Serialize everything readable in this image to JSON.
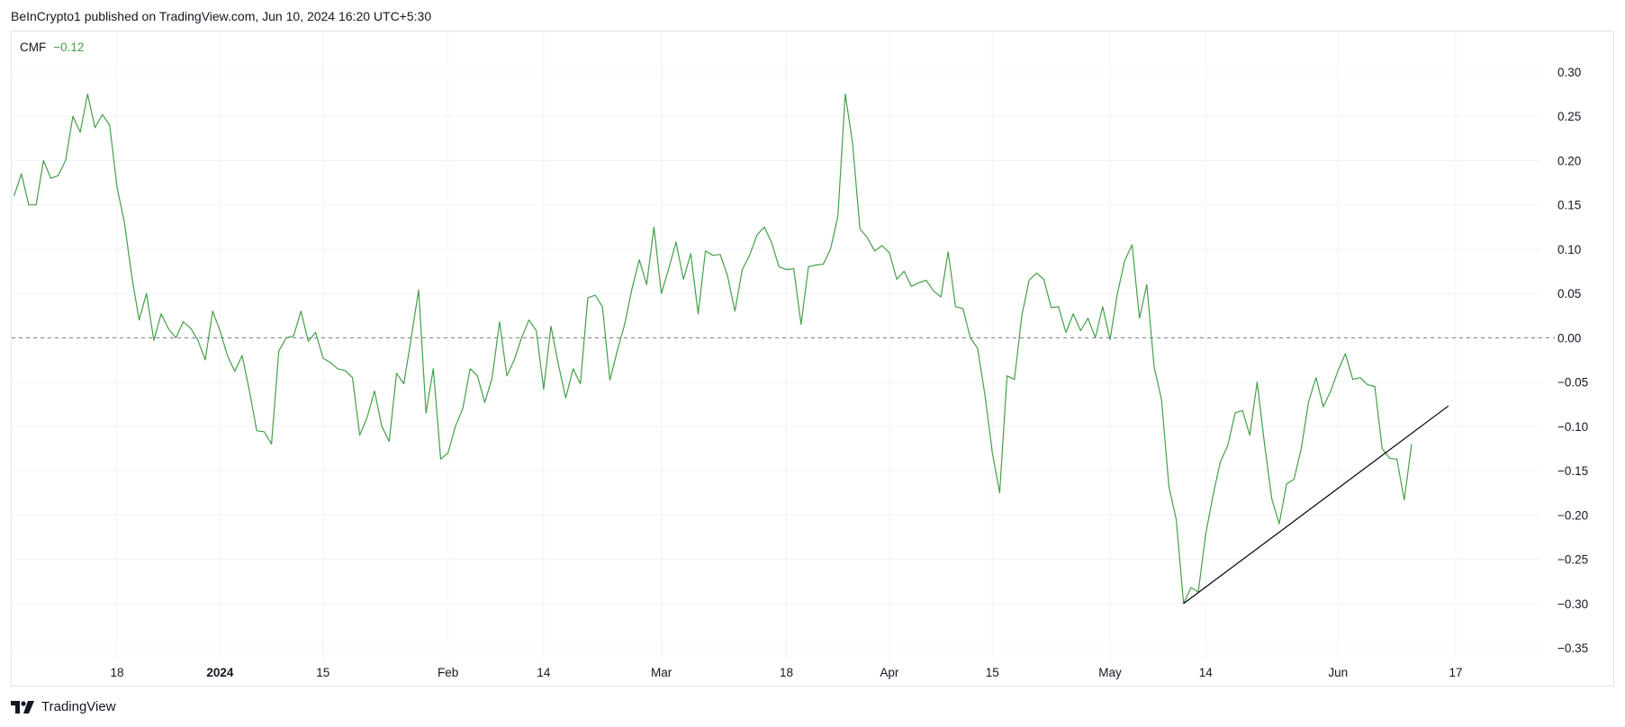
{
  "header": {
    "publisher_line": "BeInCrypto1 published on TradingView.com, Jun 10, 2024 16:20 UTC+5:30"
  },
  "legend": {
    "indicator": "CMF",
    "current_value": "−0.12"
  },
  "footer": {
    "brand": "TradingView",
    "logo_icon": "tradingview-logo-icon"
  },
  "colors": {
    "series": "#43a047",
    "trendline": "#000000",
    "zero_line": "#787b86",
    "grid": "#f0f3fa"
  },
  "chart_data": {
    "type": "line",
    "title": "",
    "xlabel": "",
    "ylabel": "",
    "ylim": [
      -0.35,
      0.3
    ],
    "y_ticks": [
      "0.30",
      "0.25",
      "0.20",
      "0.15",
      "0.10",
      "0.05",
      "0.00",
      "−0.05",
      "−0.10",
      "−0.15",
      "−0.20",
      "−0.25",
      "−0.30",
      "−0.35"
    ],
    "x_ticks": [
      {
        "label": "18",
        "date": "2023-12-18",
        "bold": false
      },
      {
        "label": "2024",
        "date": "2024-01-01",
        "bold": true
      },
      {
        "label": "15",
        "date": "2024-01-15",
        "bold": false
      },
      {
        "label": "Feb",
        "date": "2024-02-01",
        "bold": false
      },
      {
        "label": "14",
        "date": "2024-02-14",
        "bold": false
      },
      {
        "label": "Mar",
        "date": "2024-03-01",
        "bold": false
      },
      {
        "label": "18",
        "date": "2024-03-18",
        "bold": false
      },
      {
        "label": "Apr",
        "date": "2024-04-01",
        "bold": false
      },
      {
        "label": "15",
        "date": "2024-04-15",
        "bold": false
      },
      {
        "label": "May",
        "date": "2024-05-01",
        "bold": false
      },
      {
        "label": "14",
        "date": "2024-05-14",
        "bold": false
      },
      {
        "label": "Jun",
        "date": "2024-06-01",
        "bold": false
      },
      {
        "label": "17",
        "date": "2024-06-17",
        "bold": false
      }
    ],
    "xlim": [
      "2023-12-04",
      "2024-07-02"
    ],
    "zero_line": true,
    "grid": true,
    "series": [
      {
        "values": [
          [
            "2023-12-04",
            0.16
          ],
          [
            "2023-12-05",
            0.185
          ],
          [
            "2023-12-06",
            0.15
          ],
          [
            "2023-12-07",
            0.15
          ],
          [
            "2023-12-08",
            0.2
          ],
          [
            "2023-12-09",
            0.18
          ],
          [
            "2023-12-10",
            0.183
          ],
          [
            "2023-12-11",
            0.2
          ],
          [
            "2023-12-12",
            0.25
          ],
          [
            "2023-12-13",
            0.232
          ],
          [
            "2023-12-14",
            0.275
          ],
          [
            "2023-12-15",
            0.237
          ],
          [
            "2023-12-16",
            0.252
          ],
          [
            "2023-12-17",
            0.24
          ],
          [
            "2023-12-18",
            0.17
          ],
          [
            "2023-12-19",
            0.13
          ],
          [
            "2023-12-20",
            0.07
          ],
          [
            "2023-12-21",
            0.02
          ],
          [
            "2023-12-22",
            0.05
          ],
          [
            "2023-12-23",
            -0.003
          ],
          [
            "2023-12-24",
            0.027
          ],
          [
            "2023-12-25",
            0.01
          ],
          [
            "2023-12-26",
            0.0
          ],
          [
            "2023-12-27",
            0.018
          ],
          [
            "2023-12-28",
            0.011
          ],
          [
            "2023-12-29",
            -0.003
          ],
          [
            "2023-12-30",
            -0.025
          ],
          [
            "2023-12-31",
            0.03
          ],
          [
            "2024-01-01",
            0.008
          ],
          [
            "2024-01-02",
            -0.02
          ],
          [
            "2024-01-03",
            -0.038
          ],
          [
            "2024-01-04",
            -0.02
          ],
          [
            "2024-01-05",
            -0.06
          ],
          [
            "2024-01-06",
            -0.105
          ],
          [
            "2024-01-07",
            -0.106
          ],
          [
            "2024-01-08",
            -0.12
          ],
          [
            "2024-01-09",
            -0.015
          ],
          [
            "2024-01-10",
            0.0
          ],
          [
            "2024-01-11",
            0.002
          ],
          [
            "2024-01-12",
            0.03
          ],
          [
            "2024-01-13",
            -0.004
          ],
          [
            "2024-01-14",
            0.006
          ],
          [
            "2024-01-15",
            -0.023
          ],
          [
            "2024-01-16",
            -0.028
          ],
          [
            "2024-01-17",
            -0.035
          ],
          [
            "2024-01-18",
            -0.037
          ],
          [
            "2024-01-19",
            -0.045
          ],
          [
            "2024-01-20",
            -0.11
          ],
          [
            "2024-01-21",
            -0.09
          ],
          [
            "2024-01-22",
            -0.06
          ],
          [
            "2024-01-23",
            -0.1
          ],
          [
            "2024-01-24",
            -0.117
          ],
          [
            "2024-01-25",
            -0.04
          ],
          [
            "2024-01-26",
            -0.052
          ],
          [
            "2024-01-27",
            0.0
          ],
          [
            "2024-01-28",
            0.054
          ],
          [
            "2024-01-29",
            -0.085
          ],
          [
            "2024-01-30",
            -0.035
          ],
          [
            "2024-01-31",
            -0.137
          ],
          [
            "2024-02-01",
            -0.13
          ],
          [
            "2024-02-02",
            -0.1
          ],
          [
            "2024-02-03",
            -0.08
          ],
          [
            "2024-02-04",
            -0.035
          ],
          [
            "2024-02-05",
            -0.043
          ],
          [
            "2024-02-06",
            -0.073
          ],
          [
            "2024-02-07",
            -0.045
          ],
          [
            "2024-02-08",
            0.018
          ],
          [
            "2024-02-09",
            -0.043
          ],
          [
            "2024-02-10",
            -0.025
          ],
          [
            "2024-02-11",
            0.0
          ],
          [
            "2024-02-12",
            0.02
          ],
          [
            "2024-02-13",
            0.008
          ],
          [
            "2024-02-14",
            -0.058
          ],
          [
            "2024-02-15",
            0.013
          ],
          [
            "2024-02-16",
            -0.03
          ],
          [
            "2024-02-17",
            -0.068
          ],
          [
            "2024-02-18",
            -0.035
          ],
          [
            "2024-02-19",
            -0.052
          ],
          [
            "2024-02-20",
            0.045
          ],
          [
            "2024-02-21",
            0.048
          ],
          [
            "2024-02-22",
            0.035
          ],
          [
            "2024-02-23",
            -0.048
          ],
          [
            "2024-02-24",
            -0.015
          ],
          [
            "2024-02-25",
            0.015
          ],
          [
            "2024-02-26",
            0.055
          ],
          [
            "2024-02-27",
            0.088
          ],
          [
            "2024-02-28",
            0.06
          ],
          [
            "2024-02-29",
            0.125
          ],
          [
            "2024-03-01",
            0.05
          ],
          [
            "2024-03-02",
            0.078
          ],
          [
            "2024-03-03",
            0.108
          ],
          [
            "2024-03-04",
            0.066
          ],
          [
            "2024-03-05",
            0.095
          ],
          [
            "2024-03-06",
            0.027
          ],
          [
            "2024-03-07",
            0.098
          ],
          [
            "2024-03-08",
            0.093
          ],
          [
            "2024-03-09",
            0.094
          ],
          [
            "2024-03-10",
            0.07
          ],
          [
            "2024-03-11",
            0.03
          ],
          [
            "2024-03-12",
            0.077
          ],
          [
            "2024-03-13",
            0.093
          ],
          [
            "2024-03-14",
            0.116
          ],
          [
            "2024-03-15",
            0.125
          ],
          [
            "2024-03-16",
            0.107
          ],
          [
            "2024-03-17",
            0.08
          ],
          [
            "2024-03-18",
            0.077
          ],
          [
            "2024-03-19",
            0.078
          ],
          [
            "2024-03-20",
            0.015
          ],
          [
            "2024-03-21",
            0.08
          ],
          [
            "2024-03-22",
            0.082
          ],
          [
            "2024-03-23",
            0.083
          ],
          [
            "2024-03-24",
            0.1
          ],
          [
            "2024-03-25",
            0.137
          ],
          [
            "2024-03-26",
            0.275
          ],
          [
            "2024-03-27",
            0.22
          ],
          [
            "2024-03-28",
            0.123
          ],
          [
            "2024-03-29",
            0.113
          ],
          [
            "2024-03-30",
            0.098
          ],
          [
            "2024-03-31",
            0.104
          ],
          [
            "2024-04-01",
            0.096
          ],
          [
            "2024-04-02",
            0.066
          ],
          [
            "2024-04-03",
            0.075
          ],
          [
            "2024-04-04",
            0.058
          ],
          [
            "2024-04-05",
            0.062
          ],
          [
            "2024-04-06",
            0.065
          ],
          [
            "2024-04-07",
            0.053
          ],
          [
            "2024-04-08",
            0.046
          ],
          [
            "2024-04-09",
            0.097
          ],
          [
            "2024-04-10",
            0.035
          ],
          [
            "2024-04-11",
            0.033
          ],
          [
            "2024-04-12",
            0.0
          ],
          [
            "2024-04-13",
            -0.012
          ],
          [
            "2024-04-14",
            -0.065
          ],
          [
            "2024-04-15",
            -0.13
          ],
          [
            "2024-04-16",
            -0.175
          ],
          [
            "2024-04-17",
            -0.043
          ],
          [
            "2024-04-18",
            -0.047
          ],
          [
            "2024-04-19",
            0.025
          ],
          [
            "2024-04-20",
            0.065
          ],
          [
            "2024-04-21",
            0.073
          ],
          [
            "2024-04-22",
            0.066
          ],
          [
            "2024-04-23",
            0.034
          ],
          [
            "2024-04-24",
            0.035
          ],
          [
            "2024-04-25",
            0.006
          ],
          [
            "2024-04-26",
            0.027
          ],
          [
            "2024-04-27",
            0.008
          ],
          [
            "2024-04-28",
            0.022
          ],
          [
            "2024-04-29",
            0.0
          ],
          [
            "2024-04-30",
            0.035
          ],
          [
            "2024-05-01",
            -0.002
          ],
          [
            "2024-05-02",
            0.05
          ],
          [
            "2024-05-03",
            0.087
          ],
          [
            "2024-05-04",
            0.105
          ],
          [
            "2024-05-05",
            0.022
          ],
          [
            "2024-05-06",
            0.06
          ],
          [
            "2024-05-07",
            -0.033
          ],
          [
            "2024-05-08",
            -0.07
          ],
          [
            "2024-05-09",
            -0.168
          ],
          [
            "2024-05-10",
            -0.205
          ],
          [
            "2024-05-11",
            -0.3
          ],
          [
            "2024-05-12",
            -0.282
          ],
          [
            "2024-05-13",
            -0.287
          ],
          [
            "2024-05-14",
            -0.222
          ],
          [
            "2024-05-15",
            -0.178
          ],
          [
            "2024-05-16",
            -0.14
          ],
          [
            "2024-05-17",
            -0.122
          ],
          [
            "2024-05-18",
            -0.085
          ],
          [
            "2024-05-19",
            -0.082
          ],
          [
            "2024-05-20",
            -0.11
          ],
          [
            "2024-05-21",
            -0.05
          ],
          [
            "2024-05-22",
            -0.12
          ],
          [
            "2024-05-23",
            -0.182
          ],
          [
            "2024-05-24",
            -0.21
          ],
          [
            "2024-05-25",
            -0.165
          ],
          [
            "2024-05-26",
            -0.16
          ],
          [
            "2024-05-27",
            -0.125
          ],
          [
            "2024-05-28",
            -0.072
          ],
          [
            "2024-05-29",
            -0.045
          ],
          [
            "2024-05-30",
            -0.078
          ],
          [
            "2024-05-31",
            -0.06
          ],
          [
            "2024-06-01",
            -0.037
          ],
          [
            "2024-06-02",
            -0.018
          ],
          [
            "2024-06-03",
            -0.047
          ],
          [
            "2024-06-04",
            -0.045
          ],
          [
            "2024-06-05",
            -0.053
          ],
          [
            "2024-06-06",
            -0.055
          ],
          [
            "2024-06-07",
            -0.125
          ],
          [
            "2024-06-08",
            -0.136
          ],
          [
            "2024-06-09",
            -0.137
          ],
          [
            "2024-06-10",
            -0.183
          ],
          [
            "2024-06-11",
            -0.12
          ]
        ]
      }
    ],
    "trendline": {
      "start": [
        "2024-05-11",
        -0.3
      ],
      "end": [
        "2024-06-16",
        -0.077
      ]
    }
  }
}
